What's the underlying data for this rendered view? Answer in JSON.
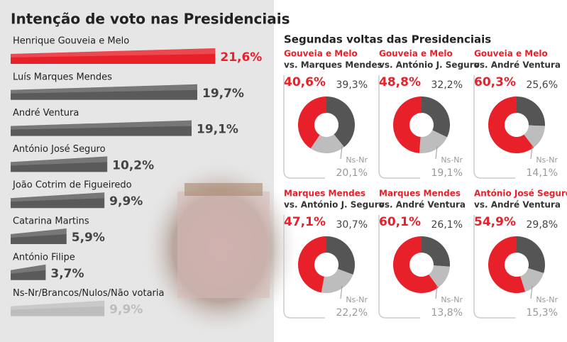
{
  "panel_title": "Segundas voltas das Presidenciais",
  "chart_data": [
    {
      "type": "bar",
      "title": "Intenção de voto nas Presidenciais",
      "categories": [
        "Henrique Gouveia e Melo",
        "Luís Marques Mendes",
        "André Ventura",
        "António José Seguro",
        "João Cotrim de Figueiredo",
        "Catarina Martins",
        "António Filipe",
        "Ns-Nr/Brancos/Nulos/Não votaria"
      ],
      "values": [
        21.6,
        19.7,
        19.1,
        10.2,
        9.9,
        5.9,
        3.7,
        9.9
      ],
      "value_labels": [
        "21,6%",
        "19,7%",
        "19,1%",
        "10,2%",
        "9,9%",
        "5,9%",
        "3,7%",
        "9,9%"
      ],
      "colors": [
        "#e8202a",
        "#5a5a5a",
        "#5a5a5a",
        "#5a5a5a",
        "#5a5a5a",
        "#5a5a5a",
        "#5a5a5a",
        "#bdbdbd"
      ]
    },
    {
      "type": "pie",
      "title": "Gouveia e Melo",
      "subtitle": "vs. Marques Mendes",
      "categories": [
        null,
        null,
        "Ns-Nr"
      ],
      "values": [
        40.6,
        39.3,
        20.1
      ],
      "value_labels": [
        "40,6%",
        "39,3%",
        "20,1%"
      ],
      "colors": [
        "#e8202a",
        "#555555",
        "#bdbdbd"
      ]
    },
    {
      "type": "pie",
      "title": "Gouveia e Melo",
      "subtitle": "vs. António J. Seguro",
      "categories": [
        null,
        null,
        "Ns-Nr"
      ],
      "values": [
        48.8,
        32.2,
        19.1
      ],
      "value_labels": [
        "48,8%",
        "32,2%",
        "19,1%"
      ],
      "colors": [
        "#e8202a",
        "#555555",
        "#bdbdbd"
      ]
    },
    {
      "type": "pie",
      "title": "Gouveia e Melo",
      "subtitle": "vs. André Ventura",
      "categories": [
        null,
        null,
        "Ns-Nr"
      ],
      "values": [
        60.3,
        25.6,
        14.1
      ],
      "value_labels": [
        "60,3%",
        "25,6%",
        "14,1%"
      ],
      "colors": [
        "#e8202a",
        "#555555",
        "#bdbdbd"
      ]
    },
    {
      "type": "pie",
      "title": "Marques Mendes",
      "subtitle": "vs. António J. Seguro",
      "categories": [
        null,
        null,
        "Ns-Nr"
      ],
      "values": [
        47.1,
        30.7,
        22.2
      ],
      "value_labels": [
        "47,1%",
        "30,7%",
        "22,2%"
      ],
      "colors": [
        "#e8202a",
        "#555555",
        "#bdbdbd"
      ]
    },
    {
      "type": "pie",
      "title": "Marques Mendes",
      "subtitle": "vs. André Ventura",
      "categories": [
        null,
        null,
        "Ns-Nr"
      ],
      "values": [
        60.1,
        26.1,
        13.8
      ],
      "value_labels": [
        "60,1%",
        "26,1%",
        "13,8%"
      ],
      "colors": [
        "#e8202a",
        "#555555",
        "#bdbdbd"
      ]
    },
    {
      "type": "pie",
      "title": "António José Seguro",
      "subtitle": "vs. André Ventura",
      "categories": [
        null,
        null,
        "Ns-Nr"
      ],
      "values": [
        54.9,
        29.8,
        15.3
      ],
      "value_labels": [
        "54,9%",
        "29,8%",
        "15,3%"
      ],
      "colors": [
        "#e8202a",
        "#555555",
        "#bdbdbd"
      ]
    }
  ]
}
